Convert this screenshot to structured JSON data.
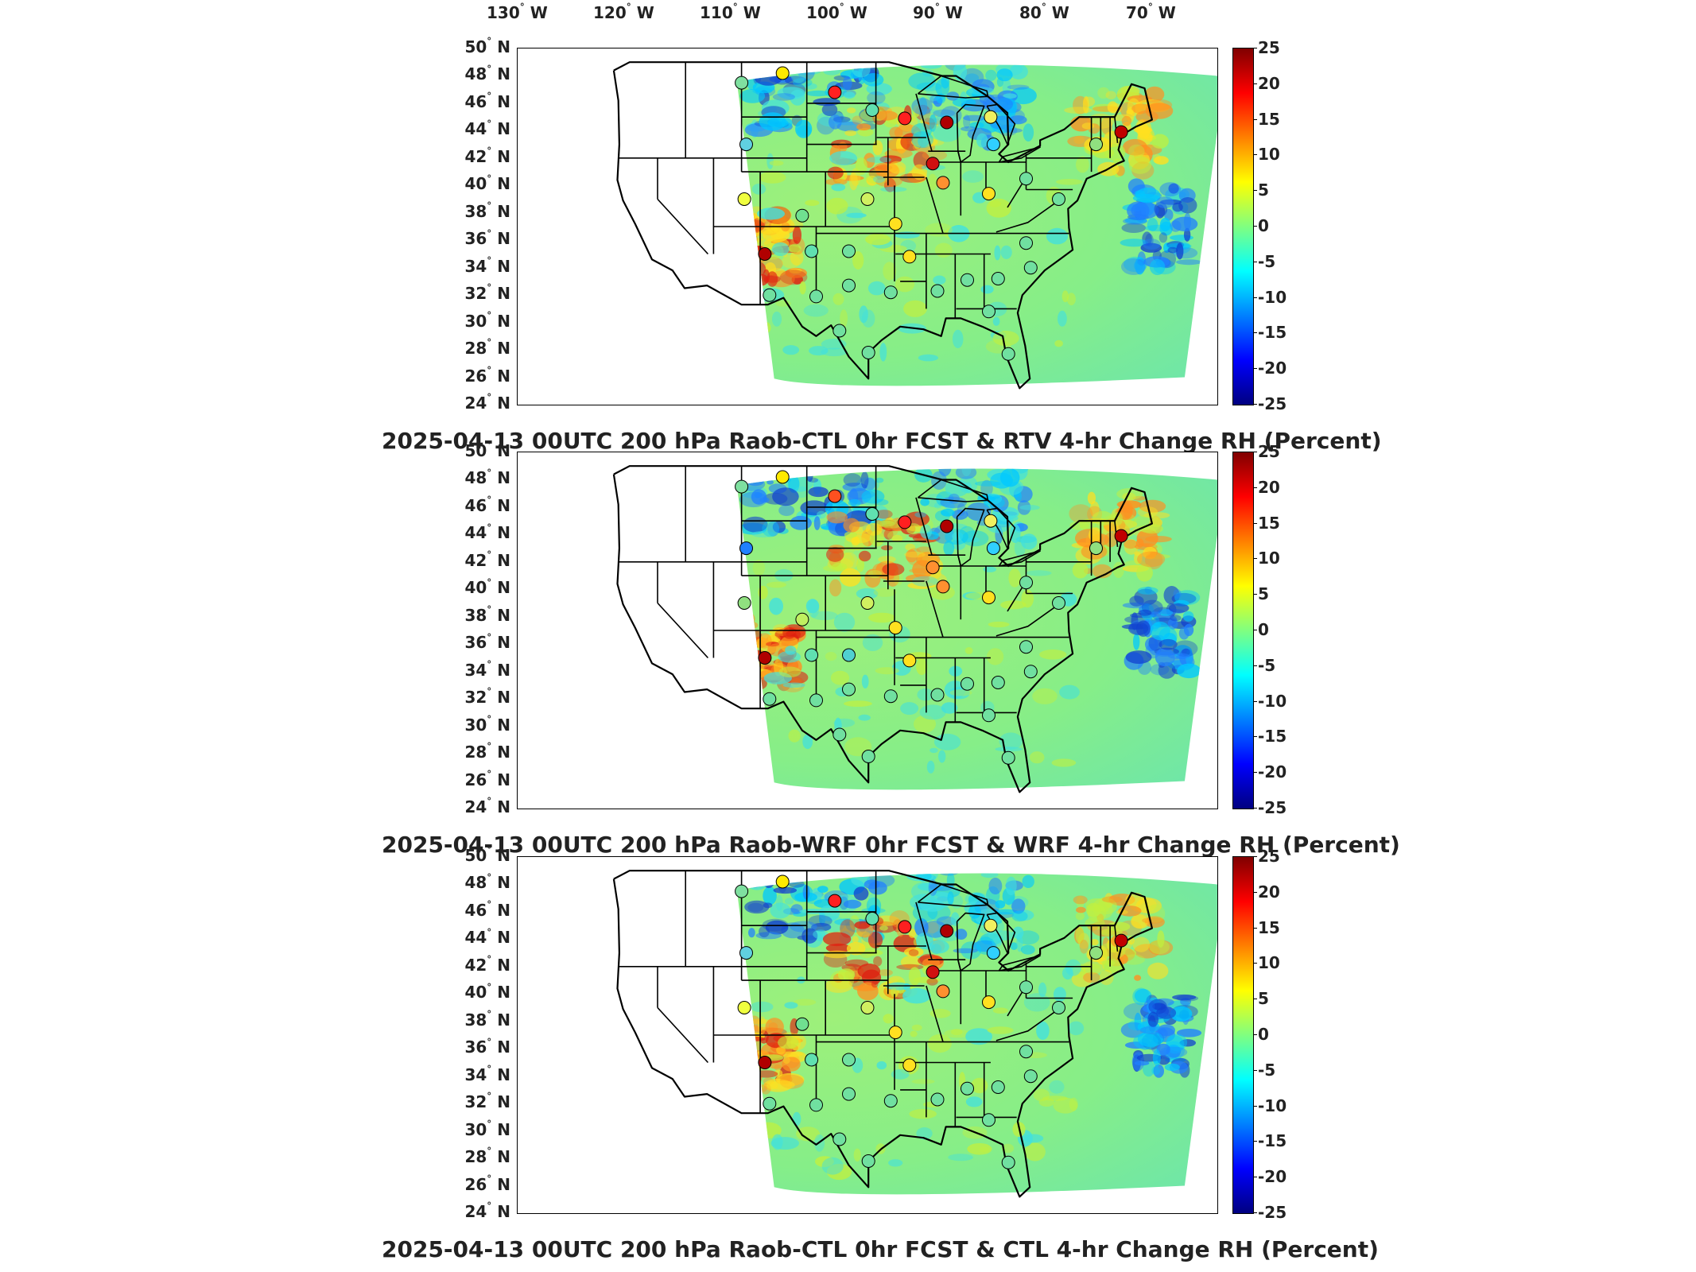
{
  "longitude_labels": [
    "130",
    "120",
    "110",
    "100",
    "90",
    "80",
    "70"
  ],
  "longitude_hemisphere": "W",
  "latitude_labels": [
    "50",
    "48",
    "46",
    "44",
    "42",
    "40",
    "38",
    "36",
    "34",
    "32",
    "30",
    "28",
    "26",
    "24"
  ],
  "latitude_hemisphere": "N",
  "colorbar_ticks": [
    "25",
    "20",
    "15",
    "10",
    "5",
    "0",
    "-5",
    "-10",
    "-15",
    "-20",
    "-25"
  ],
  "colorbar_range": [
    -25,
    25
  ],
  "colormap": [
    "#800000",
    "#ff0000",
    "#ff8000",
    "#ffff00",
    "#80ff80",
    "#00ffff",
    "#0080ff",
    "#0000ff",
    "#000080"
  ],
  "panels": [
    {
      "title": "2025-04-13 00UTC 200 hPa Raob-CTL 0hr FCST & RTV 4-hr Change RH (Percent)",
      "stations": [
        {
          "lon": -111.0,
          "lat": 47.5,
          "color": "#7fe0a0"
        },
        {
          "lon": -106.6,
          "lat": 48.2,
          "color": "#ffea00"
        },
        {
          "lon": -101.0,
          "lat": 46.8,
          "color": "#ff2020"
        },
        {
          "lon": -97.0,
          "lat": 45.5,
          "color": "#60e0b0"
        },
        {
          "lon": -93.5,
          "lat": 44.9,
          "color": "#ff2020"
        },
        {
          "lon": -89.0,
          "lat": 44.6,
          "color": "#b00000"
        },
        {
          "lon": -84.3,
          "lat": 45.0,
          "color": "#f0f060"
        },
        {
          "lon": -84.0,
          "lat": 43.0,
          "color": "#30d0ff"
        },
        {
          "lon": -90.5,
          "lat": 41.6,
          "color": "#d01010"
        },
        {
          "lon": -89.4,
          "lat": 40.2,
          "color": "#ff9030"
        },
        {
          "lon": -84.5,
          "lat": 39.4,
          "color": "#ffe020"
        },
        {
          "lon": -80.5,
          "lat": 40.5,
          "color": "#70e0a0"
        },
        {
          "lon": -77.0,
          "lat": 39.0,
          "color": "#70e0a0"
        },
        {
          "lon": -73.0,
          "lat": 43.0,
          "color": "#90e080"
        },
        {
          "lon": -70.3,
          "lat": 43.9,
          "color": "#c00000"
        },
        {
          "lon": -110.5,
          "lat": 43.0,
          "color": "#60d0e0"
        },
        {
          "lon": -110.7,
          "lat": 39.0,
          "color": "#f0ff40"
        },
        {
          "lon": -104.5,
          "lat": 37.8,
          "color": "#70e090"
        },
        {
          "lon": -97.5,
          "lat": 39.0,
          "color": "#d0f060"
        },
        {
          "lon": -94.5,
          "lat": 37.2,
          "color": "#ffe020"
        },
        {
          "lon": -108.5,
          "lat": 35.0,
          "color": "#b00000"
        },
        {
          "lon": -103.5,
          "lat": 35.2,
          "color": "#60e0b0"
        },
        {
          "lon": -99.5,
          "lat": 35.2,
          "color": "#70e0a0"
        },
        {
          "lon": -93.0,
          "lat": 34.8,
          "color": "#ffe020"
        },
        {
          "lon": -86.8,
          "lat": 33.1,
          "color": "#70e0a0"
        },
        {
          "lon": -83.5,
          "lat": 33.2,
          "color": "#70e0a0"
        },
        {
          "lon": -80.5,
          "lat": 35.8,
          "color": "#70e0a0"
        },
        {
          "lon": -80.0,
          "lat": 34.0,
          "color": "#70e0a0"
        },
        {
          "lon": -108.0,
          "lat": 32.0,
          "color": "#70e0a0"
        },
        {
          "lon": -103.0,
          "lat": 31.9,
          "color": "#70e0a0"
        },
        {
          "lon": -99.5,
          "lat": 32.7,
          "color": "#70e0a0"
        },
        {
          "lon": -95.0,
          "lat": 32.2,
          "color": "#70e0a0"
        },
        {
          "lon": -90.0,
          "lat": 32.3,
          "color": "#70e0a0"
        },
        {
          "lon": -84.5,
          "lat": 30.8,
          "color": "#70e0a0"
        },
        {
          "lon": -100.5,
          "lat": 29.4,
          "color": "#70e0a0"
        },
        {
          "lon": -97.4,
          "lat": 27.8,
          "color": "#70e0a0"
        },
        {
          "lon": -82.4,
          "lat": 27.7,
          "color": "#70e0a0"
        }
      ]
    },
    {
      "title": "2025-04-13 00UTC 200 hPa Raob-WRF 0hr FCST & WRF 4-hr Change RH (Percent)",
      "stations": [
        {
          "lon": -111.0,
          "lat": 47.5,
          "color": "#7fe0a0"
        },
        {
          "lon": -106.6,
          "lat": 48.2,
          "color": "#ffea00"
        },
        {
          "lon": -101.0,
          "lat": 46.8,
          "color": "#ff5020"
        },
        {
          "lon": -97.0,
          "lat": 45.5,
          "color": "#60e0b0"
        },
        {
          "lon": -93.5,
          "lat": 44.9,
          "color": "#ff2020"
        },
        {
          "lon": -89.0,
          "lat": 44.6,
          "color": "#b00000"
        },
        {
          "lon": -84.3,
          "lat": 45.0,
          "color": "#f0f060"
        },
        {
          "lon": -84.0,
          "lat": 43.0,
          "color": "#30d0ff"
        },
        {
          "lon": -90.5,
          "lat": 41.6,
          "color": "#ff9030"
        },
        {
          "lon": -89.4,
          "lat": 40.2,
          "color": "#ff9030"
        },
        {
          "lon": -84.5,
          "lat": 39.4,
          "color": "#ffe020"
        },
        {
          "lon": -80.5,
          "lat": 40.5,
          "color": "#70e0a0"
        },
        {
          "lon": -77.0,
          "lat": 39.0,
          "color": "#70e0a0"
        },
        {
          "lon": -73.0,
          "lat": 43.0,
          "color": "#90e080"
        },
        {
          "lon": -70.3,
          "lat": 43.9,
          "color": "#c00000"
        },
        {
          "lon": -110.5,
          "lat": 43.0,
          "color": "#2080ff"
        },
        {
          "lon": -110.7,
          "lat": 39.0,
          "color": "#90e080"
        },
        {
          "lon": -104.5,
          "lat": 37.8,
          "color": "#c0f060"
        },
        {
          "lon": -97.5,
          "lat": 39.0,
          "color": "#d0f060"
        },
        {
          "lon": -94.5,
          "lat": 37.2,
          "color": "#ffe020"
        },
        {
          "lon": -108.5,
          "lat": 35.0,
          "color": "#b00000"
        },
        {
          "lon": -103.5,
          "lat": 35.2,
          "color": "#60e0b0"
        },
        {
          "lon": -99.5,
          "lat": 35.2,
          "color": "#50d0d0"
        },
        {
          "lon": -93.0,
          "lat": 34.8,
          "color": "#ffe020"
        },
        {
          "lon": -86.8,
          "lat": 33.1,
          "color": "#70e0a0"
        },
        {
          "lon": -83.5,
          "lat": 33.2,
          "color": "#70e0a0"
        },
        {
          "lon": -80.5,
          "lat": 35.8,
          "color": "#70e0a0"
        },
        {
          "lon": -80.0,
          "lat": 34.0,
          "color": "#70e0a0"
        },
        {
          "lon": -108.0,
          "lat": 32.0,
          "color": "#70e0a0"
        },
        {
          "lon": -103.0,
          "lat": 31.9,
          "color": "#70e0a0"
        },
        {
          "lon": -99.5,
          "lat": 32.7,
          "color": "#70e0a0"
        },
        {
          "lon": -95.0,
          "lat": 32.2,
          "color": "#70e0a0"
        },
        {
          "lon": -90.0,
          "lat": 32.3,
          "color": "#70e0a0"
        },
        {
          "lon": -84.5,
          "lat": 30.8,
          "color": "#70e0a0"
        },
        {
          "lon": -100.5,
          "lat": 29.4,
          "color": "#70e0a0"
        },
        {
          "lon": -97.4,
          "lat": 27.8,
          "color": "#70e0a0"
        },
        {
          "lon": -82.4,
          "lat": 27.7,
          "color": "#70e0a0"
        }
      ]
    },
    {
      "title": "2025-04-13 00UTC 200 hPa Raob-CTL 0hr FCST & CTL 4-hr Change RH (Percent)",
      "stations": [
        {
          "lon": -111.0,
          "lat": 47.5,
          "color": "#7fe0a0"
        },
        {
          "lon": -106.6,
          "lat": 48.2,
          "color": "#ffea00"
        },
        {
          "lon": -101.0,
          "lat": 46.8,
          "color": "#ff2020"
        },
        {
          "lon": -97.0,
          "lat": 45.5,
          "color": "#60e0b0"
        },
        {
          "lon": -93.5,
          "lat": 44.9,
          "color": "#ff2020"
        },
        {
          "lon": -89.0,
          "lat": 44.6,
          "color": "#b00000"
        },
        {
          "lon": -84.3,
          "lat": 45.0,
          "color": "#f0f060"
        },
        {
          "lon": -84.0,
          "lat": 43.0,
          "color": "#30d0ff"
        },
        {
          "lon": -90.5,
          "lat": 41.6,
          "color": "#d01010"
        },
        {
          "lon": -89.4,
          "lat": 40.2,
          "color": "#ff9030"
        },
        {
          "lon": -84.5,
          "lat": 39.4,
          "color": "#ffe020"
        },
        {
          "lon": -80.5,
          "lat": 40.5,
          "color": "#70e0a0"
        },
        {
          "lon": -77.0,
          "lat": 39.0,
          "color": "#70e0a0"
        },
        {
          "lon": -73.0,
          "lat": 43.0,
          "color": "#90e080"
        },
        {
          "lon": -70.3,
          "lat": 43.9,
          "color": "#c00000"
        },
        {
          "lon": -110.5,
          "lat": 43.0,
          "color": "#60d0e0"
        },
        {
          "lon": -110.7,
          "lat": 39.0,
          "color": "#f0ff40"
        },
        {
          "lon": -104.5,
          "lat": 37.8,
          "color": "#70e090"
        },
        {
          "lon": -97.5,
          "lat": 39.0,
          "color": "#d0f060"
        },
        {
          "lon": -94.5,
          "lat": 37.2,
          "color": "#ffe020"
        },
        {
          "lon": -108.5,
          "lat": 35.0,
          "color": "#b00000"
        },
        {
          "lon": -103.5,
          "lat": 35.2,
          "color": "#60e0b0"
        },
        {
          "lon": -99.5,
          "lat": 35.2,
          "color": "#70e0a0"
        },
        {
          "lon": -93.0,
          "lat": 34.8,
          "color": "#ffe020"
        },
        {
          "lon": -86.8,
          "lat": 33.1,
          "color": "#70e0a0"
        },
        {
          "lon": -83.5,
          "lat": 33.2,
          "color": "#70e0a0"
        },
        {
          "lon": -80.5,
          "lat": 35.8,
          "color": "#70e0a0"
        },
        {
          "lon": -80.0,
          "lat": 34.0,
          "color": "#70e0a0"
        },
        {
          "lon": -108.0,
          "lat": 32.0,
          "color": "#70e0a0"
        },
        {
          "lon": -103.0,
          "lat": 31.9,
          "color": "#70e0a0"
        },
        {
          "lon": -99.5,
          "lat": 32.7,
          "color": "#70e0a0"
        },
        {
          "lon": -95.0,
          "lat": 32.2,
          "color": "#70e0a0"
        },
        {
          "lon": -90.0,
          "lat": 32.3,
          "color": "#70e0a0"
        },
        {
          "lon": -84.5,
          "lat": 30.8,
          "color": "#70e0a0"
        },
        {
          "lon": -100.5,
          "lat": 29.4,
          "color": "#70e0a0"
        },
        {
          "lon": -97.4,
          "lat": 27.8,
          "color": "#70e0a0"
        },
        {
          "lon": -82.4,
          "lat": 27.7,
          "color": "#70e0a0"
        }
      ]
    }
  ]
}
